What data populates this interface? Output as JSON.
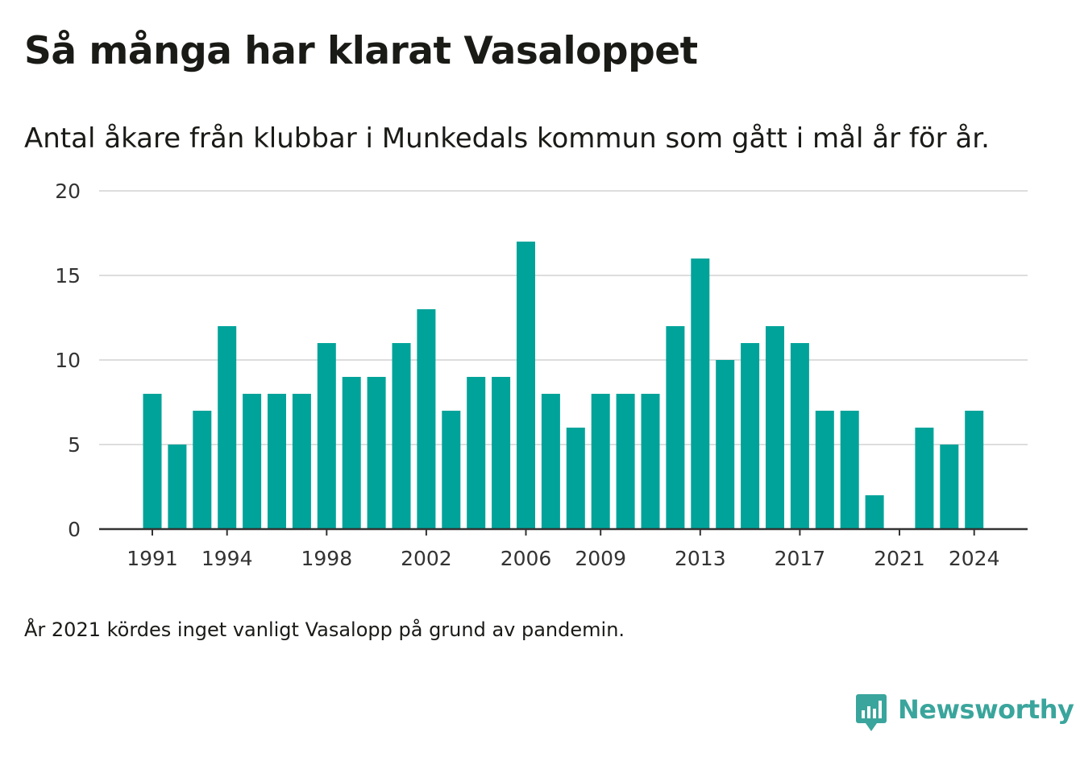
{
  "title": "Så många har klarat Vasaloppet",
  "subtitle": "Antal åkare från klubbar i Munkedals kommun som gått i mål år för år.",
  "footnote": "År 2021 kördes inget vanligt Vasalopp på grund av pandemin.",
  "brand": {
    "name": "Newsworthy",
    "icon": "newsworthy-logo-icon",
    "color": "#3aa59c"
  },
  "colors": {
    "bar": "#00a39a",
    "grid": "#dddddd",
    "axis": "#333333",
    "text": "#333333"
  },
  "chart_data": {
    "type": "bar",
    "categories": [
      1991,
      1992,
      1993,
      1994,
      1995,
      1996,
      1997,
      1998,
      1999,
      2000,
      2001,
      2002,
      2003,
      2004,
      2005,
      2006,
      2007,
      2008,
      2009,
      2010,
      2011,
      2012,
      2013,
      2014,
      2015,
      2016,
      2017,
      2018,
      2019,
      2020,
      2021,
      2022,
      2023,
      2024
    ],
    "values": [
      8,
      5,
      7,
      12,
      8,
      8,
      8,
      11,
      9,
      9,
      11,
      13,
      7,
      9,
      9,
      17,
      8,
      6,
      8,
      8,
      8,
      12,
      16,
      10,
      11,
      12,
      11,
      7,
      7,
      2,
      0,
      6,
      5,
      7
    ],
    "x_tick_labels": [
      "1991",
      "1994",
      "1998",
      "2002",
      "2006",
      "2009",
      "2013",
      "2017",
      "2021",
      "2024"
    ],
    "y_ticks": [
      0,
      5,
      10,
      15,
      20
    ],
    "ylim": [
      0,
      20
    ],
    "grid": true,
    "legend": "none"
  }
}
